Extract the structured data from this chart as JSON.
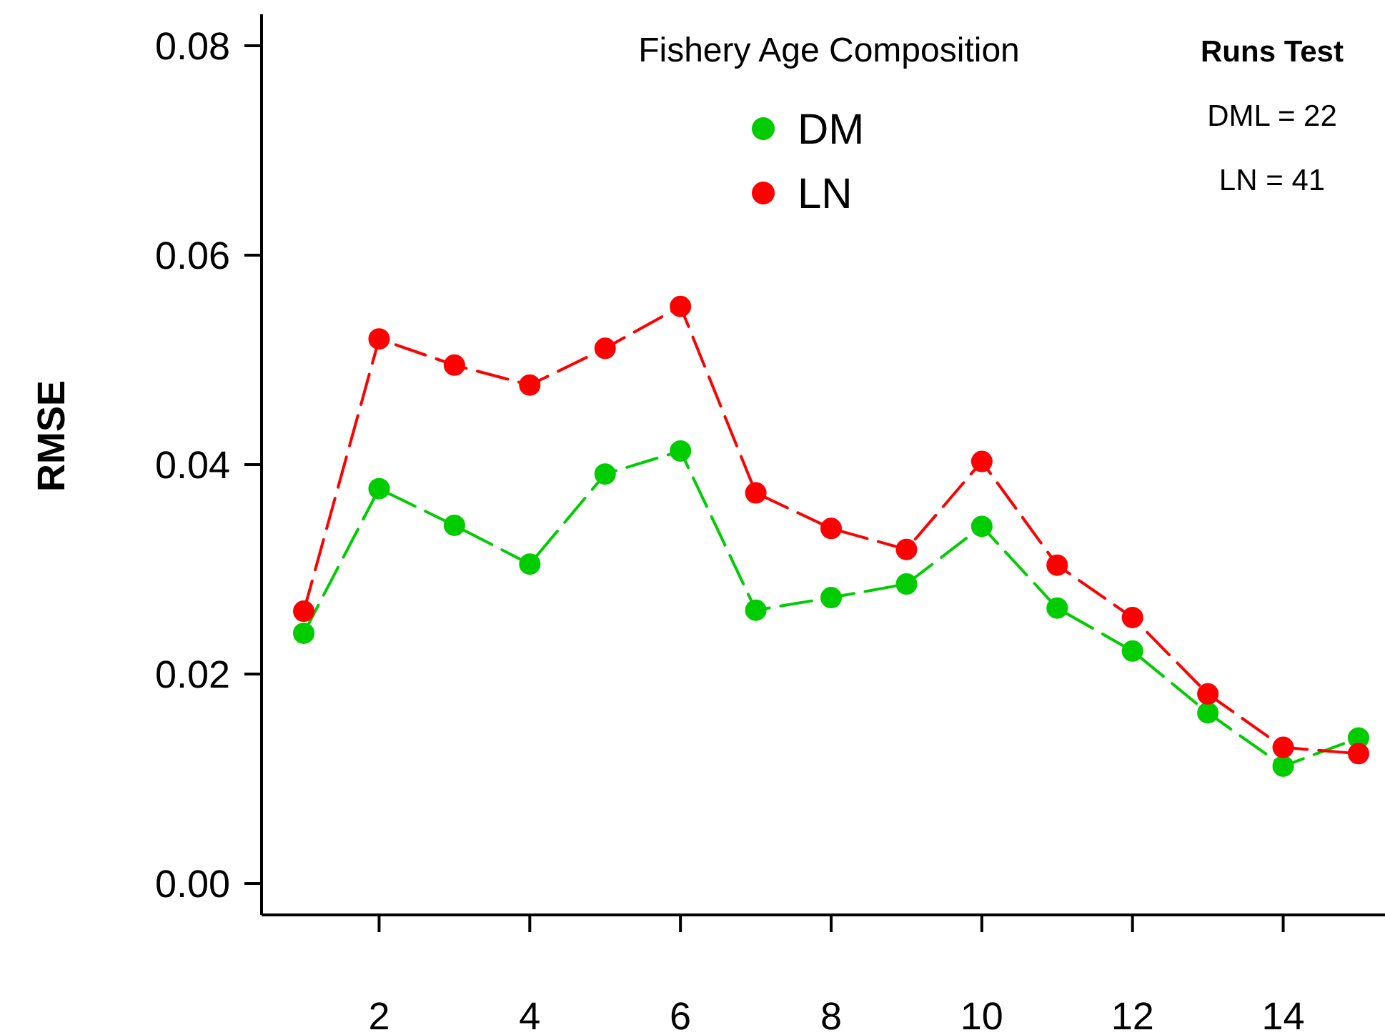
{
  "chart_data": {
    "type": "line",
    "title": "Fishery Age Composition",
    "ylabel": "RMSE",
    "x": [
      1,
      2,
      3,
      4,
      5,
      6,
      7,
      8,
      9,
      10,
      11,
      12,
      13,
      14,
      15
    ],
    "series": [
      {
        "name": "DM",
        "color": "#00cc00",
        "values": [
          0.0239,
          0.0377,
          0.0342,
          0.0305,
          0.0391,
          0.0413,
          0.0261,
          0.0273,
          0.0286,
          0.0341,
          0.0263,
          0.0222,
          0.0163,
          0.0112,
          0.0139
        ]
      },
      {
        "name": "LN",
        "color": "#ff0000",
        "values": [
          0.026,
          0.052,
          0.0495,
          0.0476,
          0.0511,
          0.0551,
          0.0373,
          0.0339,
          0.0319,
          0.0403,
          0.0304,
          0.0254,
          0.0181,
          0.013,
          0.0124
        ]
      }
    ],
    "xlim": [
      0.44,
      15.56
    ],
    "xticks": [
      2,
      4,
      6,
      8,
      10,
      12,
      14
    ],
    "ylim": [
      -0.003,
      0.083
    ],
    "yticks": [
      {
        "value": 0,
        "label": "0.00"
      },
      {
        "value": 0.02,
        "label": "0.02"
      },
      {
        "value": 0.04,
        "label": "0.04"
      },
      {
        "value": 0.06,
        "label": "0.06"
      },
      {
        "value": 0.08,
        "label": "0.08"
      }
    ],
    "annotations": [
      "Runs Test",
      "DML = 22",
      "LN = 41"
    ],
    "legend": "top",
    "marker": "circle",
    "line_style": "dashed",
    "grid": false
  }
}
